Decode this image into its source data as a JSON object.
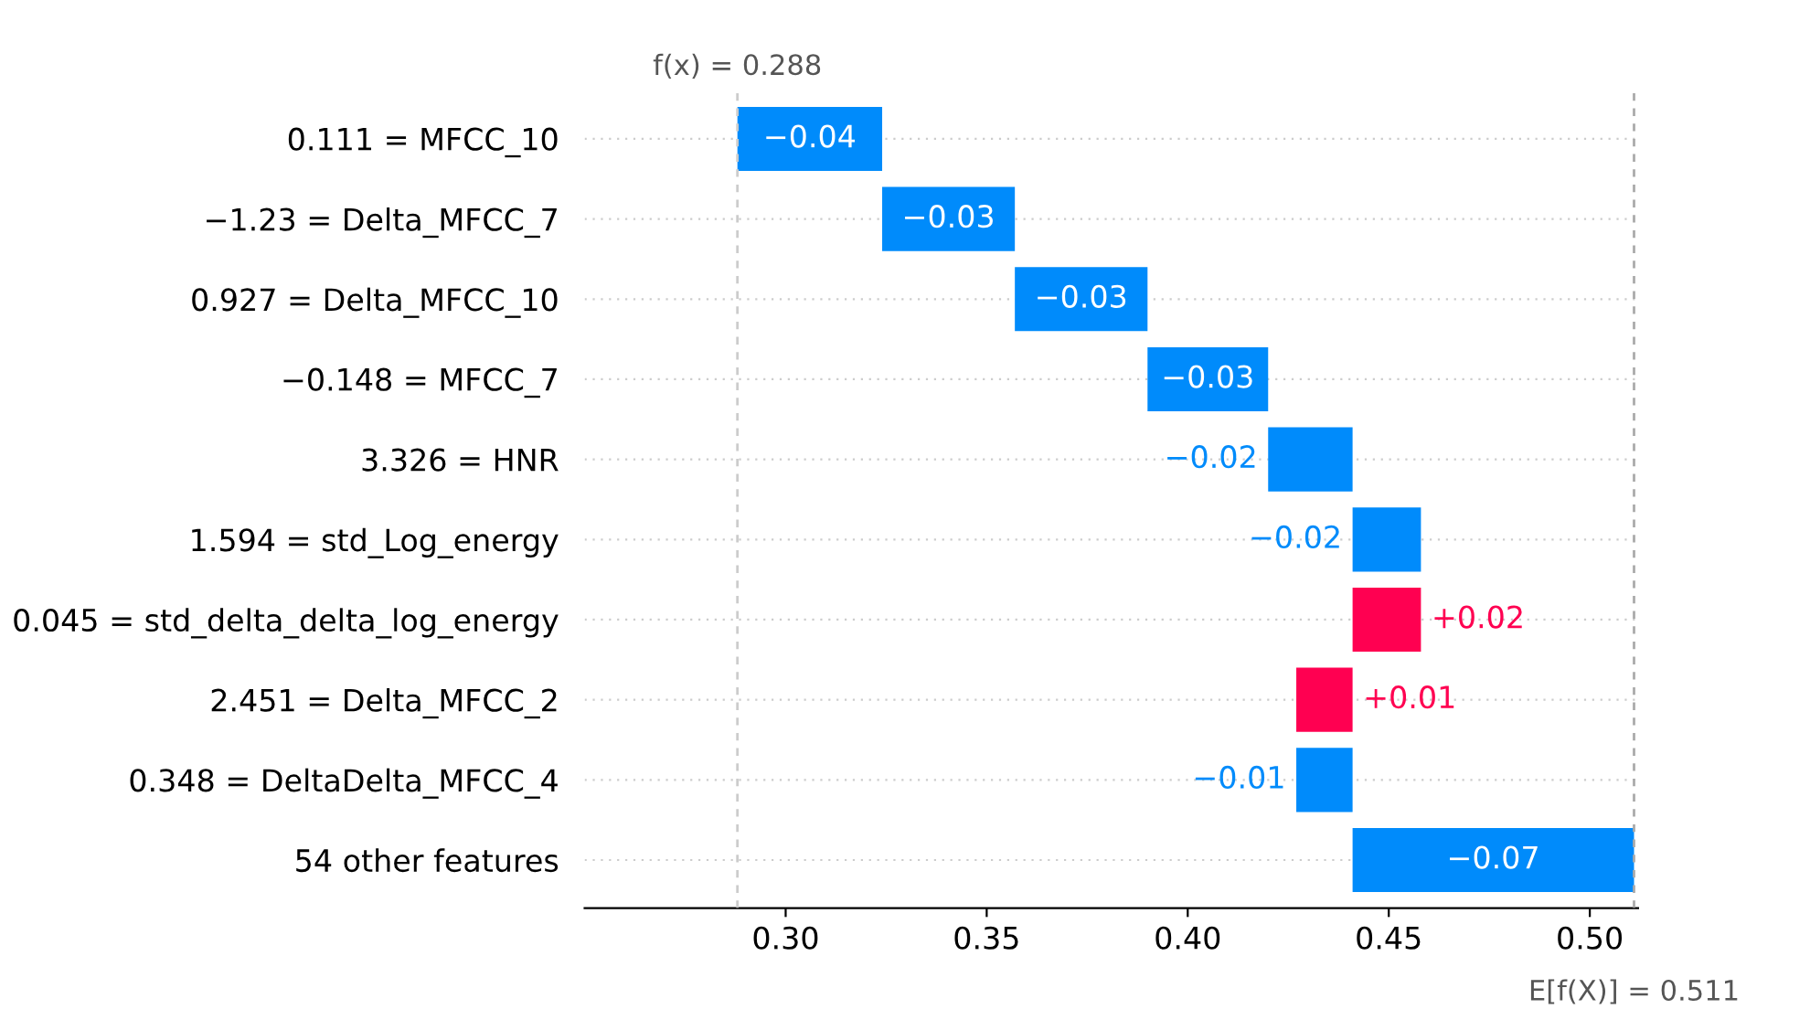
{
  "chart_data": {
    "type": "bar",
    "orientation": "horizontal",
    "categories": [
      "0.111 = MFCC_10",
      "−1.23 = Delta_MFCC_7",
      "0.927 = Delta_MFCC_10",
      "−0.148 = MFCC_7",
      "3.326 = HNR",
      "1.594 = std_Log_energy",
      "0.045 = std_delta_delta_log_energy",
      "2.451 = Delta_MFCC_2",
      "0.348 = DeltaDelta_MFCC_4",
      "54 other features"
    ],
    "values": [
      -0.036,
      -0.033,
      -0.033,
      -0.03,
      -0.021,
      -0.017,
      0.017,
      0.014,
      -0.014,
      -0.07
    ],
    "base": [
      0.324,
      0.357,
      0.39,
      0.42,
      0.441,
      0.458,
      0.441,
      0.427,
      0.441,
      0.511
    ],
    "colors": [
      "#008bfb",
      "#008bfb",
      "#008bfb",
      "#008bfb",
      "#008bfb",
      "#008bfb",
      "#ff0051",
      "#ff0051",
      "#008bfb",
      "#008bfb"
    ],
    "value_labels": [
      "−0.04",
      "−0.03",
      "−0.03",
      "−0.03",
      "−0.02",
      "−0.02",
      "+0.02",
      "+0.01",
      "−0.01",
      "−0.07"
    ],
    "xlim": [
      0.25,
      0.512
    ],
    "xticks": [
      {
        "value": 0.3,
        "label": "0.30"
      },
      {
        "value": 0.35,
        "label": "0.35"
      },
      {
        "value": 0.4,
        "label": "0.40"
      },
      {
        "value": 0.45,
        "label": "0.45"
      },
      {
        "value": 0.5,
        "label": "0.50"
      }
    ],
    "ref_lines": [
      {
        "axis": "x",
        "value": 0.288,
        "label": "f(x) = 0.288",
        "color": "#cccccc",
        "line_style": "dashed"
      },
      {
        "axis": "x",
        "value": 0.511,
        "label": "E[f(X)] = 0.511",
        "color": "#aaaaaa",
        "line_style": "dashed"
      }
    ],
    "grid": "y"
  }
}
